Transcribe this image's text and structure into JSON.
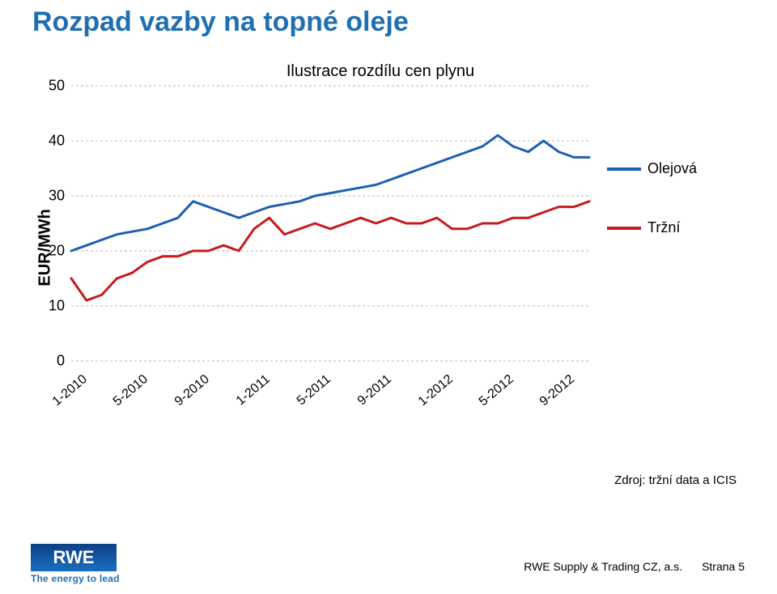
{
  "slide": {
    "title": "Rozpad vazby na topné oleje",
    "source": "Zdroj: tržní data a ICIS",
    "footer_company": "RWE Supply & Trading CZ, a.s.",
    "footer_page": "Strana 5",
    "tagline": "The energy to lead"
  },
  "chart": {
    "type": "line",
    "title": "Ilustrace rozdílu cen plynu",
    "ylabel": "EUR/MWh",
    "background_color": "#ffffff",
    "grid_color": "#b7b7b7",
    "grid_dash": "3,3",
    "xlim": [
      0,
      34
    ],
    "ylim": [
      0,
      50
    ],
    "ytick_step": 10,
    "ytick_labels": [
      "0",
      "10",
      "20",
      "30",
      "40",
      "50"
    ],
    "xtick_positions": [
      0,
      4,
      8,
      12,
      16,
      20,
      24,
      28,
      32
    ],
    "xtick_labels": [
      "1-2010",
      "5-2010",
      "9-2010",
      "1-2011",
      "5-2011",
      "9-2011",
      "1-2012",
      "5-2012",
      "9-2012"
    ],
    "legend": [
      {
        "label": "Olejová",
        "color": "#1f5fb0"
      },
      {
        "label": "Tržní",
        "color": "#c61a1e"
      }
    ],
    "series": {
      "olejova": {
        "color": "#1f5fb0",
        "line_width": 3,
        "values": [
          20,
          21,
          22,
          23,
          23.5,
          24,
          25,
          26,
          29,
          28,
          27,
          26,
          27,
          28,
          28.5,
          29,
          30,
          30.5,
          31,
          31.5,
          32,
          33,
          34,
          35,
          36,
          37,
          38,
          39,
          41,
          39,
          38,
          40,
          38,
          37,
          37
        ]
      },
      "trzni": {
        "color": "#c61a1e",
        "line_width": 3,
        "values": [
          15,
          11,
          12,
          15,
          16,
          18,
          19,
          19,
          20,
          20,
          21,
          20,
          24,
          26,
          23,
          24,
          25,
          24,
          25,
          26,
          25,
          26,
          25,
          25,
          26,
          24,
          24,
          25,
          25,
          26,
          26,
          27,
          28,
          28,
          29
        ]
      }
    }
  },
  "logo": {
    "text": "RWE",
    "gradient_from": "#0b3f86",
    "gradient_to": "#1a6fc0",
    "text_color": "#ffffff"
  }
}
